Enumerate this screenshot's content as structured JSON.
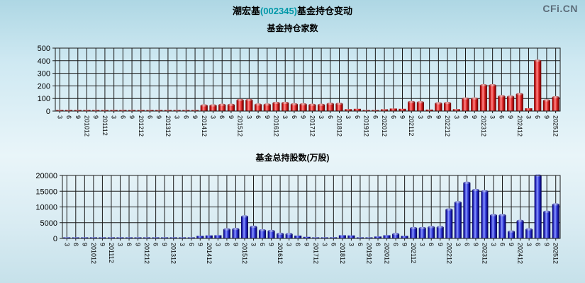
{
  "header": {
    "title_parts": {
      "prefix": "潮宏基",
      "code": "(002345)",
      "suffix": "基金持仓变动"
    },
    "logo": "CFi.CN"
  },
  "colors": {
    "code_text": "#0098a8",
    "logo_text": "#5d6d7a",
    "grid": "#1a1a1a",
    "red_bar": "#dd2222",
    "blue_bar": "#3333cc"
  },
  "chart_data": [
    {
      "type": "bar",
      "title": "基金持仓家数",
      "ylim": [
        0,
        500
      ],
      "yticks": [
        500,
        400,
        300,
        200,
        100,
        0
      ],
      "legend": "none",
      "grid": "on",
      "bar_theme": "red",
      "categories": [
        "3",
        "6",
        "9",
        "201012",
        "9",
        "201112",
        "3",
        "6",
        "9",
        "201212",
        "6",
        "9",
        "201312",
        "3",
        "6",
        "9",
        "201412",
        "3",
        "6",
        "9",
        "201512",
        "3",
        "6",
        "9",
        "201612",
        "3",
        "6",
        "9",
        "201712",
        "3",
        "6",
        "201812",
        "3",
        "6",
        "201912",
        "6",
        "202012",
        "6",
        "9",
        "202112",
        "3",
        "6",
        "9",
        "202212",
        "3",
        "6",
        "9",
        "202312",
        "3",
        "6",
        "9",
        "202412",
        "3",
        "6",
        "9",
        "202512"
      ],
      "values": [
        4,
        3,
        3,
        5,
        3,
        5,
        4,
        4,
        3,
        5,
        3,
        4,
        5,
        4,
        5,
        8,
        45,
        45,
        50,
        50,
        88,
        88,
        52,
        52,
        65,
        65,
        54,
        54,
        50,
        50,
        58,
        58,
        15,
        18,
        8,
        8,
        14,
        20,
        18,
        72,
        70,
        12,
        62,
        64,
        15,
        100,
        100,
        205,
        205,
        118,
        115,
        135,
        22,
        400,
        85,
        110
      ]
    },
    {
      "type": "bar",
      "title": "基金总持股数(万股)",
      "ylim": [
        0,
        20000
      ],
      "yticks": [
        20000,
        15000,
        10000,
        5000,
        0
      ],
      "legend": "none",
      "grid": "on",
      "bar_theme": "blue",
      "categories": [
        "3",
        "6",
        "9",
        "201012",
        "9",
        "201112",
        "3",
        "6",
        "9",
        "201212",
        "6",
        "9",
        "201312",
        "3",
        "6",
        "9",
        "201412",
        "3",
        "6",
        "9",
        "201512",
        "3",
        "6",
        "9",
        "201612",
        "3",
        "6",
        "9",
        "201712",
        "3",
        "6",
        "201812",
        "3",
        "6",
        "201912",
        "6",
        "202012",
        "6",
        "9",
        "202112",
        "3",
        "6",
        "9",
        "202212",
        "3",
        "6",
        "9",
        "202312",
        "3",
        "6",
        "9",
        "202412",
        "3",
        "6",
        "9",
        "202512"
      ],
      "values": [
        120,
        100,
        100,
        150,
        100,
        130,
        100,
        110,
        100,
        150,
        100,
        110,
        160,
        150,
        250,
        800,
        950,
        1000,
        2900,
        3000,
        7000,
        3700,
        2600,
        2400,
        1500,
        1400,
        900,
        500,
        200,
        250,
        350,
        1000,
        950,
        250,
        250,
        600,
        1000,
        1400,
        800,
        3300,
        3300,
        3600,
        3600,
        9200,
        11500,
        17700,
        15400,
        15000,
        7400,
        7400,
        2200,
        5600,
        2900,
        20000,
        8500,
        10800
      ]
    }
  ]
}
